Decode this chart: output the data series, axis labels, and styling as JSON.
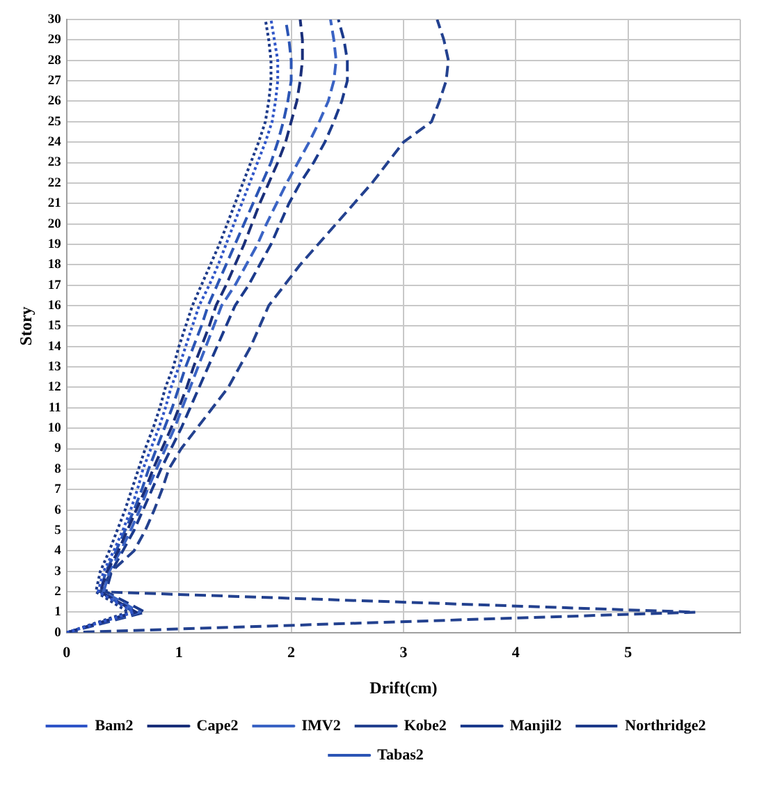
{
  "chart_data": {
    "type": "line",
    "xlabel": "Drift(cm)",
    "ylabel": "Story",
    "xlim": [
      0,
      6
    ],
    "xticks": [
      0,
      1,
      2,
      3,
      4,
      5,
      {
        "value": 6,
        "label": null
      }
    ],
    "ylim": [
      0,
      30
    ],
    "yticks": [
      0,
      1,
      2,
      3,
      4,
      5,
      6,
      7,
      8,
      9,
      10,
      11,
      12,
      13,
      14,
      15,
      16,
      17,
      18,
      19,
      20,
      21,
      22,
      23,
      24,
      25,
      26,
      27,
      28,
      29,
      30
    ],
    "grid": true,
    "legend": "bottom",
    "marker": "none",
    "series": [
      {
        "name": "Bam2",
        "color": "#2f55c8",
        "line_style": "dotted",
        "x": [
          0,
          0.6,
          0.28,
          0.33,
          0.42,
          0.5,
          0.57,
          0.63,
          0.68,
          0.75,
          0.82,
          0.88,
          0.93,
          1.0,
          1.06,
          1.12,
          1.18,
          1.27,
          1.35,
          1.42,
          1.49,
          1.56,
          1.63,
          1.7,
          1.77,
          1.83,
          1.86,
          1.88,
          1.88,
          1.85,
          1.82
        ],
        "values": [
          0,
          1,
          2,
          3,
          4,
          5,
          6,
          7,
          8,
          9,
          10,
          11,
          12,
          13,
          14,
          15,
          16,
          17,
          18,
          19,
          20,
          21,
          22,
          23,
          24,
          25,
          26,
          27,
          28,
          29,
          30
        ]
      },
      {
        "name": "Cape2",
        "color": "#1a2f7a",
        "line_style": "dashed",
        "x": [
          0,
          0.62,
          0.3,
          0.36,
          0.46,
          0.54,
          0.62,
          0.7,
          0.77,
          0.85,
          0.93,
          1.0,
          1.07,
          1.13,
          1.2,
          1.27,
          1.33,
          1.42,
          1.5,
          1.58,
          1.65,
          1.72,
          1.8,
          1.88,
          1.95,
          2.0,
          2.05,
          2.08,
          2.1,
          2.1,
          2.08
        ],
        "values": [
          0,
          1,
          2,
          3,
          4,
          5,
          6,
          7,
          8,
          9,
          10,
          11,
          12,
          13,
          14,
          15,
          16,
          17,
          18,
          19,
          20,
          21,
          22,
          23,
          24,
          25,
          26,
          27,
          28,
          29,
          30
        ]
      },
      {
        "name": "IMV2",
        "color": "#3a63c4",
        "line_style": "dashed",
        "x": [
          0,
          0.65,
          0.33,
          0.38,
          0.48,
          0.57,
          0.65,
          0.72,
          0.8,
          0.88,
          0.96,
          1.03,
          1.1,
          1.17,
          1.24,
          1.31,
          1.38,
          1.5,
          1.6,
          1.7,
          1.78,
          1.87,
          1.96,
          2.06,
          2.16,
          2.25,
          2.33,
          2.38,
          2.4,
          2.38,
          2.35
        ],
        "values": [
          0,
          1,
          2,
          3,
          4,
          5,
          6,
          7,
          8,
          9,
          10,
          11,
          12,
          13,
          14,
          15,
          16,
          17,
          18,
          19,
          20,
          21,
          22,
          23,
          24,
          25,
          26,
          27,
          28,
          29,
          30
        ]
      },
      {
        "name": "Kobe2",
        "color": "#23418f",
        "line_style": "dashed",
        "x": [
          0,
          5.6,
          0.3,
          0.4,
          0.6,
          0.7,
          0.78,
          0.85,
          0.91,
          1.02,
          1.16,
          1.3,
          1.44,
          1.54,
          1.64,
          1.72,
          1.8,
          1.94,
          2.08,
          2.24,
          2.4,
          2.56,
          2.72,
          2.86,
          3.0,
          3.25,
          3.32,
          3.38,
          3.4,
          3.36,
          3.3
        ],
        "values": [
          0,
          1,
          2,
          3,
          4,
          5,
          6,
          7,
          8,
          9,
          10,
          11,
          12,
          13,
          14,
          15,
          16,
          17,
          18,
          19,
          20,
          21,
          22,
          23,
          24,
          25,
          26,
          27,
          28,
          29,
          30
        ]
      },
      {
        "name": "Manjil2",
        "color": "#1b3a8c",
        "line_style": "dashed",
        "x": [
          0,
          0.7,
          0.35,
          0.4,
          0.5,
          0.6,
          0.68,
          0.76,
          0.84,
          0.93,
          1.02,
          1.1,
          1.18,
          1.26,
          1.34,
          1.42,
          1.5,
          1.62,
          1.72,
          1.82,
          1.9,
          1.98,
          2.08,
          2.2,
          2.3,
          2.38,
          2.45,
          2.5,
          2.5,
          2.47,
          2.42
        ],
        "values": [
          0,
          1,
          2,
          3,
          4,
          5,
          6,
          7,
          8,
          9,
          10,
          11,
          12,
          13,
          14,
          15,
          16,
          17,
          18,
          19,
          20,
          21,
          22,
          23,
          24,
          25,
          26,
          27,
          28,
          29,
          30
        ]
      },
      {
        "name": "Northridge2",
        "color": "#1d3a8a",
        "line_style": "dotted",
        "x": [
          0,
          0.55,
          0.26,
          0.3,
          0.38,
          0.45,
          0.52,
          0.58,
          0.64,
          0.7,
          0.77,
          0.83,
          0.88,
          0.95,
          1.0,
          1.06,
          1.12,
          1.2,
          1.28,
          1.36,
          1.43,
          1.5,
          1.57,
          1.64,
          1.71,
          1.77,
          1.8,
          1.82,
          1.82,
          1.8,
          1.77
        ],
        "values": [
          0,
          1,
          2,
          3,
          4,
          5,
          6,
          7,
          8,
          9,
          10,
          11,
          12,
          13,
          14,
          15,
          16,
          17,
          18,
          19,
          20,
          21,
          22,
          23,
          24,
          25,
          26,
          27,
          28,
          29,
          30
        ]
      },
      {
        "name": "Tabas2",
        "color": "#2b55b5",
        "line_style": "dashed",
        "x": [
          0,
          0.6,
          0.3,
          0.35,
          0.44,
          0.52,
          0.6,
          0.67,
          0.73,
          0.8,
          0.87,
          0.94,
          1.0,
          1.06,
          1.13,
          1.2,
          1.26,
          1.34,
          1.42,
          1.5,
          1.58,
          1.66,
          1.74,
          1.82,
          1.88,
          1.93,
          1.97,
          2.0,
          2.0,
          1.98,
          1.95
        ],
        "values": [
          0,
          1,
          2,
          3,
          4,
          5,
          6,
          7,
          8,
          9,
          10,
          11,
          12,
          13,
          14,
          15,
          16,
          17,
          18,
          19,
          20,
          21,
          22,
          23,
          24,
          25,
          26,
          27,
          28,
          29,
          30
        ]
      }
    ]
  }
}
